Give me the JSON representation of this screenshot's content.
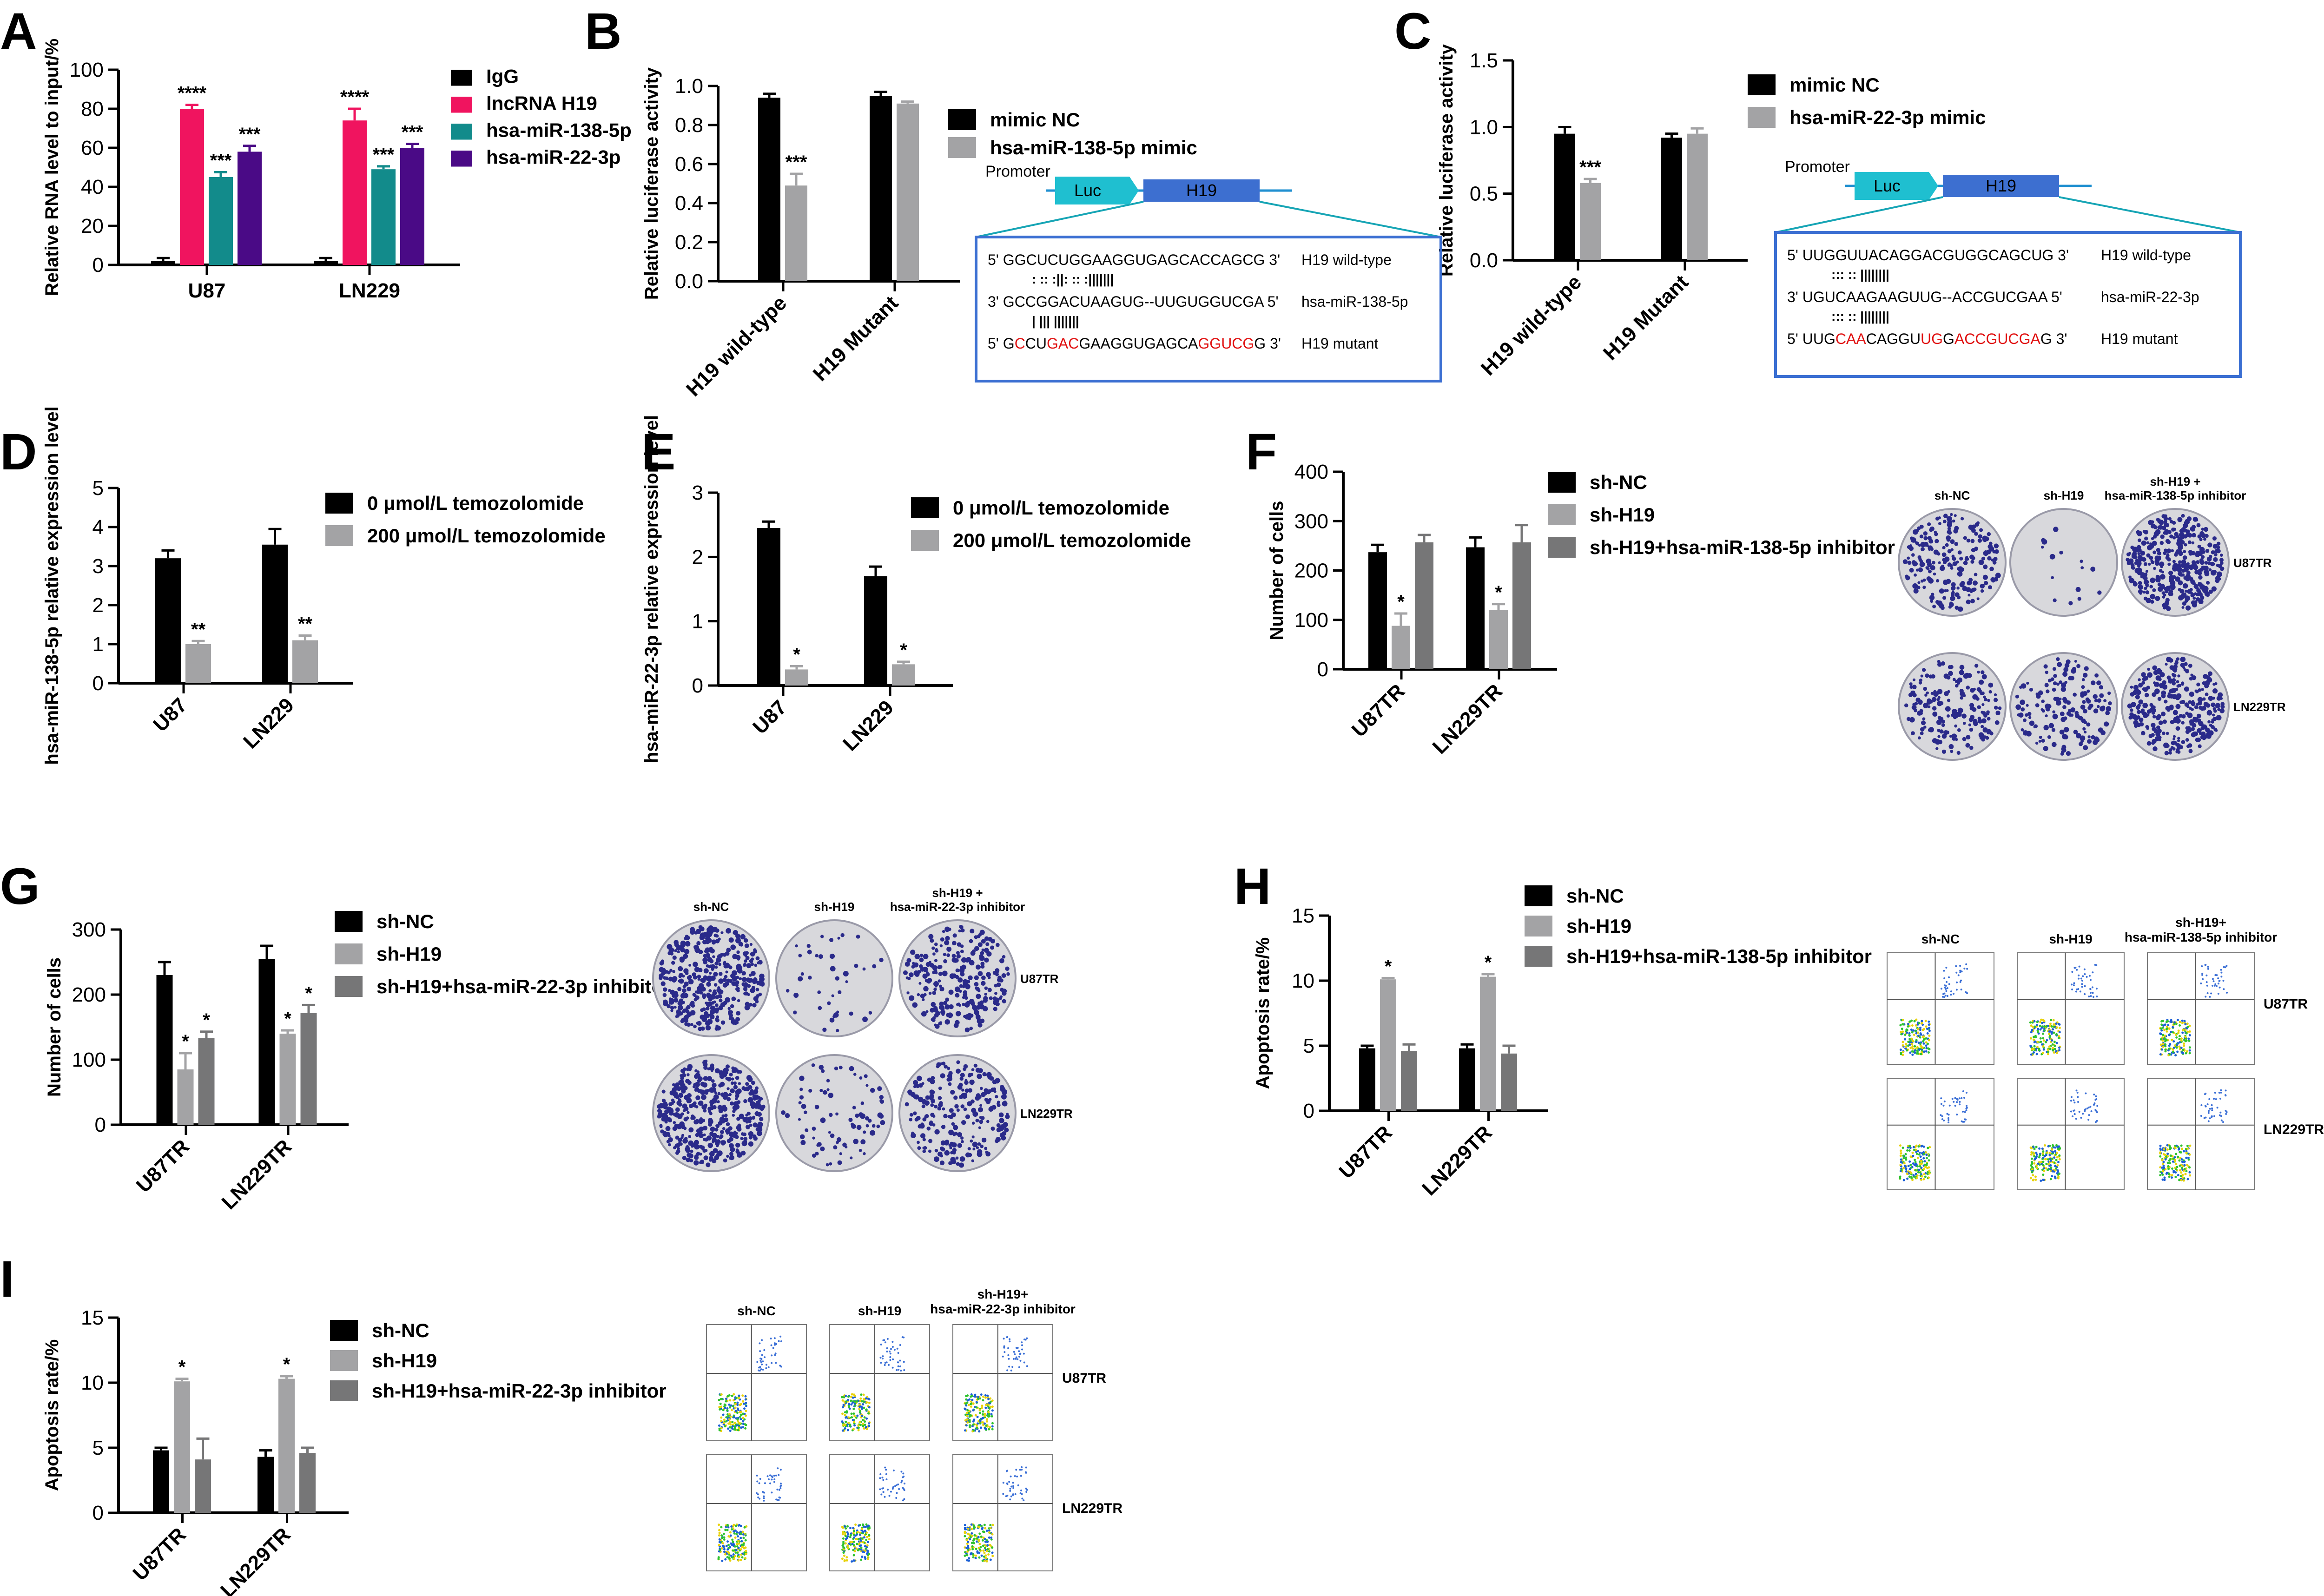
{
  "colors": {
    "black": "#000000",
    "pink": "#f0145f",
    "teal": "#128b8b",
    "purple": "#4a0a86",
    "grey": "#a3a3a5",
    "darkgrey": "#767677",
    "h19_box": "#3d6fd0",
    "luc_box": "#1fbfd0",
    "red": "#e01010",
    "frame": "#3b6fd2"
  },
  "panels": {
    "A": {
      "letter": "A",
      "yticks": [
        "0",
        "20",
        "40",
        "60",
        "80",
        "100"
      ]
    },
    "B": {
      "letter": "B"
    },
    "C": {
      "letter": "C"
    },
    "D": {
      "letter": "D"
    },
    "E": {
      "letter": "E"
    },
    "F": {
      "letter": "F"
    },
    "G": {
      "letter": "G"
    },
    "H": {
      "letter": "H"
    },
    "I": {
      "letter": "I"
    }
  },
  "chart_data": [
    {
      "id": "A",
      "type": "bar",
      "ylabel": "Relative RNA level to input/%",
      "ylim": [
        0,
        100
      ],
      "yticks": [
        0,
        20,
        40,
        60,
        80,
        100
      ],
      "categories": [
        "U87",
        "LN229"
      ],
      "series": [
        {
          "name": "IgG",
          "color": "#000000",
          "values": [
            2,
            2
          ],
          "err": [
            1.5,
            1.5
          ],
          "sig": [
            "",
            ""
          ]
        },
        {
          "name": "lncRNA H19",
          "color": "#f0145f",
          "values": [
            80,
            74
          ],
          "err": [
            2,
            6
          ],
          "sig": [
            "****",
            "****"
          ]
        },
        {
          "name": "hsa-miR-138-5p",
          "color": "#128b8b",
          "values": [
            45,
            49
          ],
          "err": [
            2.5,
            1.5
          ],
          "sig": [
            "***",
            "***"
          ]
        },
        {
          "name": "hsa-miR-22-3p",
          "color": "#4a0a86",
          "values": [
            58,
            60
          ],
          "err": [
            3,
            2
          ],
          "sig": [
            "***",
            "***"
          ]
        }
      ]
    },
    {
      "id": "B",
      "type": "bar",
      "ylabel": "Relative luciferase activity",
      "ylim": [
        0,
        1.0
      ],
      "yticks": [
        "0.0",
        "0.2",
        "0.4",
        "0.6",
        "0.8",
        "1.0"
      ],
      "categories": [
        "H19 wild-type",
        "H19 Mutant"
      ],
      "series": [
        {
          "name": "mimic NC",
          "color": "#000000",
          "values": [
            0.94,
            0.95
          ],
          "err": [
            0.02,
            0.02
          ],
          "sig": [
            "",
            ""
          ]
        },
        {
          "name": "hsa-miR-138-5p mimic",
          "color": "#a3a3a5",
          "values": [
            0.49,
            0.91
          ],
          "err": [
            0.06,
            0.01
          ],
          "sig": [
            "***",
            ""
          ]
        }
      ]
    },
    {
      "id": "C",
      "type": "bar",
      "ylabel": "Relative luciferase activity",
      "ylim": [
        0,
        1.5
      ],
      "yticks": [
        "0.0",
        "0.5",
        "1.0",
        "1.5"
      ],
      "categories": [
        "H19 wild-type",
        "H19 Mutant"
      ],
      "series": [
        {
          "name": "mimic NC",
          "color": "#000000",
          "values": [
            0.95,
            0.92
          ],
          "err": [
            0.05,
            0.03
          ],
          "sig": [
            "",
            ""
          ]
        },
        {
          "name": "hsa-miR-22-3p mimic",
          "color": "#a3a3a5",
          "values": [
            0.58,
            0.95
          ],
          "err": [
            0.03,
            0.04
          ],
          "sig": [
            "***",
            ""
          ]
        }
      ]
    },
    {
      "id": "D",
      "type": "bar",
      "ylabel": "hsa-miR-138-5p relative expression level",
      "ylim": [
        0,
        5
      ],
      "yticks": [
        "0",
        "1",
        "2",
        "3",
        "4",
        "5"
      ],
      "categories": [
        "U87",
        "LN229"
      ],
      "series": [
        {
          "name": "0 μmol/L temozolomide",
          "color": "#000000",
          "values": [
            3.2,
            3.55
          ],
          "err": [
            0.2,
            0.4
          ],
          "sig": [
            "",
            ""
          ]
        },
        {
          "name": "200 μmol/L temozolomide",
          "color": "#a3a3a5",
          "values": [
            1.0,
            1.1
          ],
          "err": [
            0.08,
            0.12
          ],
          "sig": [
            "**",
            "**"
          ]
        }
      ]
    },
    {
      "id": "E",
      "type": "bar",
      "ylabel": "hsa-miR-22-3p relative expression level",
      "ylim": [
        0,
        3
      ],
      "yticks": [
        "0",
        "1",
        "2",
        "3"
      ],
      "categories": [
        "U87",
        "LN229"
      ],
      "series": [
        {
          "name": "0 μmol/L temozolomide",
          "color": "#000000",
          "values": [
            2.45,
            1.7
          ],
          "err": [
            0.1,
            0.15
          ],
          "sig": [
            "",
            ""
          ]
        },
        {
          "name": "200 μmol/L temozolomide",
          "color": "#a3a3a5",
          "values": [
            0.25,
            0.33
          ],
          "err": [
            0.05,
            0.04
          ],
          "sig": [
            "*",
            "*"
          ]
        }
      ]
    },
    {
      "id": "F",
      "type": "bar",
      "ylabel": "Number of cells",
      "ylim": [
        0,
        400
      ],
      "yticks": [
        "0",
        "100",
        "200",
        "300",
        "400"
      ],
      "categories": [
        "U87TR",
        "LN229TR"
      ],
      "series": [
        {
          "name": "sh-NC",
          "color": "#000000",
          "values": [
            237,
            247
          ],
          "err": [
            15,
            20
          ],
          "sig": [
            "",
            ""
          ]
        },
        {
          "name": "sh-H19",
          "color": "#a3a3a5",
          "values": [
            88,
            120
          ],
          "err": [
            25,
            12
          ],
          "sig": [
            "*",
            "*"
          ]
        },
        {
          "name": "sh-H19+hsa-miR-138-5p inhibitor",
          "color": "#767677",
          "values": [
            257,
            257
          ],
          "err": [
            15,
            35
          ],
          "sig": [
            "",
            ""
          ]
        }
      ]
    },
    {
      "id": "G",
      "type": "bar",
      "ylabel": "Number of cells",
      "ylim": [
        0,
        300
      ],
      "yticks": [
        "0",
        "100",
        "200",
        "300"
      ],
      "categories": [
        "U87TR",
        "LN229TR"
      ],
      "series": [
        {
          "name": "sh-NC",
          "color": "#000000",
          "values": [
            230,
            255
          ],
          "err": [
            20,
            20
          ],
          "sig": [
            "",
            ""
          ]
        },
        {
          "name": "sh-H19",
          "color": "#a3a3a5",
          "values": [
            85,
            140
          ],
          "err": [
            25,
            5
          ],
          "sig": [
            "*",
            "*"
          ]
        },
        {
          "name": "sh-H19+hsa-miR-22-3p inhibitor",
          "color": "#767677",
          "values": [
            133,
            172
          ],
          "err": [
            10,
            12
          ],
          "sig": [
            "*",
            "*"
          ]
        }
      ]
    },
    {
      "id": "H",
      "type": "bar",
      "ylabel": "Apoptosis rate/%",
      "ylim": [
        0,
        15
      ],
      "yticks": [
        "0",
        "5",
        "10",
        "15"
      ],
      "categories": [
        "U87TR",
        "LN229TR"
      ],
      "series": [
        {
          "name": "sh-NC",
          "color": "#000000",
          "values": [
            4.8,
            4.8
          ],
          "err": [
            0.2,
            0.3
          ],
          "sig": [
            "",
            ""
          ]
        },
        {
          "name": "sh-H19",
          "color": "#a3a3a5",
          "values": [
            10.1,
            10.3
          ],
          "err": [
            0.1,
            0.2
          ],
          "sig": [
            "*",
            "*"
          ]
        },
        {
          "name": "sh-H19+hsa-miR-138-5p inhibitor",
          "color": "#767677",
          "values": [
            4.6,
            4.4
          ],
          "err": [
            0.5,
            0.6
          ],
          "sig": [
            "",
            ""
          ]
        }
      ]
    },
    {
      "id": "I",
      "type": "bar",
      "ylabel": "Apoptosis rate/%",
      "ylim": [
        0,
        15
      ],
      "yticks": [
        "0",
        "5",
        "10",
        "15"
      ],
      "categories": [
        "U87TR",
        "LN229TR"
      ],
      "series": [
        {
          "name": "sh-NC",
          "color": "#000000",
          "values": [
            4.8,
            4.3
          ],
          "err": [
            0.2,
            0.5
          ],
          "sig": [
            "",
            ""
          ]
        },
        {
          "name": "sh-H19",
          "color": "#a3a3a5",
          "values": [
            10.1,
            10.3
          ],
          "err": [
            0.2,
            0.2
          ],
          "sig": [
            "*",
            "*"
          ]
        },
        {
          "name": "sh-H19+hsa-miR-22-3p inhibitor",
          "color": "#767677",
          "values": [
            4.1,
            4.6
          ],
          "err": [
            1.6,
            0.4
          ],
          "sig": [
            "",
            ""
          ]
        }
      ]
    }
  ],
  "schemes": {
    "B": {
      "promoter": "Promoter",
      "luc": "Luc",
      "h19": "H19",
      "rows": [
        {
          "seq": [
            {
              "t": "5' GGCUCUGGAAGGUGAGCACCAGCG 3'",
              "r": false
            }
          ],
          "label": "H19 wild-type",
          "pair": ":  ::  :||:  ::   :|||||||"
        },
        {
          "seq": [
            {
              "t": "3' GCCGGACUAAGUG--UUGUGGUCGA 5'",
              "r": false
            }
          ],
          "label": "hsa-miR-138-5p",
          "pair": "|      |||          |||||||"
        },
        {
          "seq": [
            {
              "t": "5' G",
              "r": false
            },
            {
              "t": "C",
              "r": true
            },
            {
              "t": "CU",
              "r": false
            },
            {
              "t": "GAC",
              "r": true
            },
            {
              "t": "GAAGGUGAGCA",
              "r": false
            },
            {
              "t": "GGUCG",
              "r": true
            },
            {
              "t": "G 3'",
              "r": false
            }
          ],
          "label": "H19 mutant",
          "pair": ""
        }
      ]
    },
    "C": {
      "promoter": "Promoter",
      "luc": "Luc",
      "h19": "H19",
      "rows": [
        {
          "seq": [
            {
              "t": "5' UUGGUUACAGGACGUGGCAGCUG 3'",
              "r": false
            }
          ],
          "label": "H19 wild-type",
          "pair": ":::    ::  ||||||||"
        },
        {
          "seq": [
            {
              "t": "3' UGUCAAGAAGUUG--ACCGUCGAA 5'",
              "r": false
            }
          ],
          "label": "hsa-miR-22-3p",
          "pair": ":::    ::  ||||||||"
        },
        {
          "seq": [
            {
              "t": "5' UUG",
              "r": false
            },
            {
              "t": "CAA",
              "r": true
            },
            {
              "t": "CAGGU",
              "r": false
            },
            {
              "t": "UG",
              "r": true
            },
            {
              "t": "G",
              "r": false
            },
            {
              "t": "ACCGUCGA",
              "r": true
            },
            {
              "t": "G 3'",
              "r": false
            }
          ],
          "label": "H19 mutant",
          "pair": ""
        }
      ]
    }
  },
  "colony_F": {
    "cols": [
      "sh-NC",
      "sh-H19",
      "sh-H19 +",
      "hsa-miR-138-5p inhibitor"
    ],
    "rows": [
      "U87TR",
      "LN229TR"
    ]
  },
  "colony_G": {
    "cols": [
      "sh-NC",
      "sh-H19",
      "sh-H19 +",
      "hsa-miR-22-3p inhibitor"
    ],
    "rows": [
      "U87TR",
      "LN229TR"
    ]
  },
  "flow_H": {
    "cols": [
      "sh-NC",
      "sh-H19",
      "sh-H19+",
      "hsa-miR-138-5p inhibitor"
    ],
    "rows": [
      "U87TR",
      "LN229TR"
    ]
  },
  "flow_I": {
    "cols": [
      "sh-NC",
      "sh-H19",
      "sh-H19+",
      "hsa-miR-22-3p inhibitor"
    ],
    "rows": [
      "U87TR",
      "LN229TR"
    ]
  }
}
